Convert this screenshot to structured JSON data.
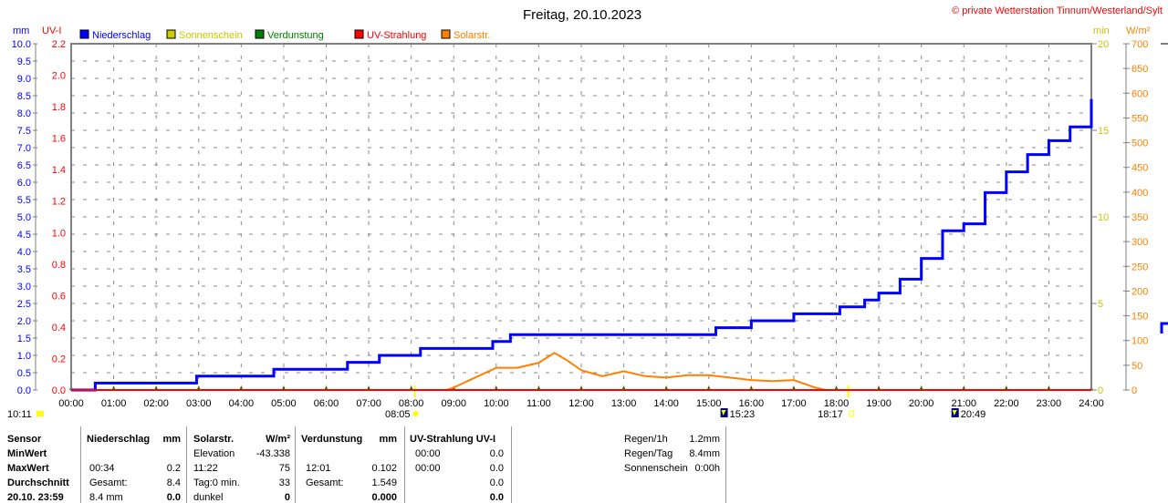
{
  "title": "Freitag, 20.10.2023",
  "copyright": "© private Wetterstation Tinnum/Westerland/Sylt",
  "colors": {
    "niederschlag": "#0000ff",
    "sonnenschein": "#cccc00",
    "verdunstung": "#008000",
    "uv": "#ff0000",
    "solar": "#ff8000"
  },
  "legend": [
    {
      "label": "Niederschlag",
      "color": "#0000ff"
    },
    {
      "label": "Sonnenschein",
      "color": "#cccc00"
    },
    {
      "label": "Verdunstung",
      "color": "#008000"
    },
    {
      "label": "UV-Strahlung",
      "color": "#ff0000"
    },
    {
      "label": "Solarstr.",
      "color": "#ff8000"
    }
  ],
  "chart_data": {
    "type": "line",
    "title": "Freitag, 20.10.2023",
    "x_ticks": [
      "00:00",
      "01:00",
      "02:00",
      "03:00",
      "04:00",
      "05:00",
      "06:00",
      "07:00",
      "08:00",
      "09:00",
      "10:00",
      "11:00",
      "12:00",
      "13:00",
      "14:00",
      "15:00",
      "16:00",
      "17:00",
      "18:00",
      "19:00",
      "20:00",
      "21:00",
      "22:00",
      "23:00",
      "24:00"
    ],
    "axes": {
      "mm": {
        "unit": "mm",
        "range": [
          0,
          10
        ],
        "step": 0.5
      },
      "uv": {
        "unit": "UV-I",
        "range": [
          0,
          2.2
        ],
        "step": 0.2
      },
      "min": {
        "unit": "min",
        "range": [
          0,
          20
        ],
        "step": 5
      },
      "solar": {
        "unit": "W/m²",
        "range": [
          0,
          700
        ],
        "step": 50
      }
    },
    "grid": true,
    "series": [
      {
        "name": "Niederschlag",
        "axis": "mm",
        "step": true,
        "x": [
          "00:00",
          "00:34",
          "02:57",
          "04:46",
          "06:30",
          "07:15",
          "08:13",
          "09:55",
          "10:20",
          "15:10",
          "16:00",
          "17:00",
          "18:05",
          "18:40",
          "19:00",
          "19:30",
          "20:00",
          "20:30",
          "21:00",
          "21:30",
          "22:00",
          "22:30",
          "23:00",
          "23:30",
          "24:00"
        ],
        "y": [
          0,
          0.2,
          0.4,
          0.6,
          0.8,
          1.0,
          1.2,
          1.4,
          1.6,
          1.8,
          2.0,
          2.2,
          2.4,
          2.6,
          2.8,
          3.2,
          3.8,
          4.6,
          4.8,
          5.7,
          6.3,
          6.8,
          7.2,
          7.6,
          8.4
        ]
      },
      {
        "name": "Solarstr.",
        "axis": "solar",
        "x": [
          "08:50",
          "09:00",
          "09:30",
          "10:00",
          "10:30",
          "11:00",
          "11:22",
          "11:40",
          "12:00",
          "12:30",
          "13:00",
          "13:30",
          "14:00",
          "14:30",
          "15:00",
          "15:30",
          "16:00",
          "16:30",
          "17:00",
          "17:30",
          "17:45"
        ],
        "y": [
          0,
          5,
          25,
          45,
          45,
          55,
          75,
          60,
          40,
          28,
          38,
          28,
          25,
          30,
          30,
          25,
          20,
          18,
          20,
          5,
          0
        ]
      },
      {
        "name": "Verdunstung",
        "axis": "mm",
        "x": [
          "00:00",
          "24:00"
        ],
        "y": [
          0,
          0
        ]
      },
      {
        "name": "UV-Strahlung",
        "axis": "uv",
        "x": [
          "00:00",
          "24:00"
        ],
        "y": [
          0,
          0
        ]
      }
    ],
    "markers": {
      "sunrise": "08:05",
      "sunset": "18:17",
      "moon1": "15:23",
      "moon2": "20:49",
      "daylength": "10:11"
    }
  },
  "table": {
    "headers": [
      "Sensor",
      "Niederschlag",
      "mm",
      "Solarstr.",
      "W/m²",
      "Verdunstung",
      "mm",
      "UV-Strahlung UV-I"
    ],
    "row_labels": [
      "MinWert",
      "MaxWert",
      "Durchschnitt",
      "20.10. 23:59"
    ],
    "rows": [
      [
        "",
        "",
        "Elevation",
        "-43.338",
        "",
        "",
        "00:00",
        "0.0"
      ],
      [
        "00:34",
        "0.2",
        "11:22",
        "75",
        "12:01",
        "0.102",
        "00:00",
        "0.0"
      ],
      [
        "Gesamt:",
        "8.4",
        "Tag:0 min.",
        "33",
        "Gesamt:",
        "1.549",
        "",
        "0.0"
      ],
      [
        "8.4 mm",
        "0.0",
        "dunkel",
        "0",
        "",
        "0.000",
        "",
        "0.0"
      ]
    ],
    "summary": [
      {
        "label": "Regen/1h",
        "value": "1.2mm"
      },
      {
        "label": "Regen/Tag",
        "value": "8.4mm"
      },
      {
        "label": "Sonnenschein",
        "value": "0:00h"
      }
    ]
  }
}
